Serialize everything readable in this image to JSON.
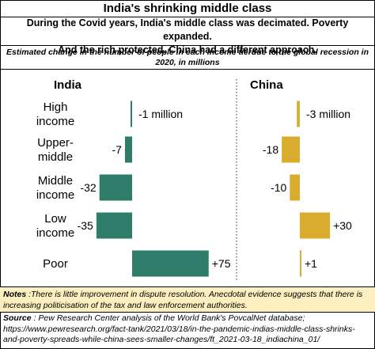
{
  "title": "India's shrinking middle class",
  "subtitle_line1": "During the Covid years, India's middle class was decimated.  Poverty expanded.",
  "subtitle_line2": "And the rich protected.  China had a different approach.",
  "description": "Estimated change in the number of people in each income tierdue to the global recession  in 2020, in millions",
  "notes_label": "Notes",
  "notes_text": " :There is little improvement in dispute resolution. Anecdotal evidence suggests that there is increasing politicisation of the tax and law enforcement authorities.",
  "source_label": "Source",
  "source_text": " : Pew Research Center analysis of the World Bank's PovcalNet database;",
  "source_url_line1": "https://www.pewresearch.org/fact-tank/2021/03/18/in-the-pandemic-indias-middle-class-shrinks-",
  "source_url_line2": "and-poverty-spreads-while-china-sees-smaller-changes/ft_2021-03-18_indiachina_01/",
  "chart_data": {
    "type": "bar",
    "orientation": "horizontal",
    "categories": [
      "High\nincome",
      "Upper-\nmiddle",
      "Middle\nincome",
      "Low\nincome",
      "Poor"
    ],
    "series": [
      {
        "name": "India",
        "color": "#2e7d6a",
        "values": [
          -1,
          -7,
          -32,
          -35,
          75
        ],
        "value_labels": [
          "-1 million",
          "-7",
          "-32",
          "-35",
          "+75"
        ]
      },
      {
        "name": "China",
        "color": "#d9ac2e",
        "values": [
          -3,
          -18,
          -10,
          30,
          1
        ],
        "value_labels": [
          "-3 million",
          "-18",
          "-10",
          "+30",
          "+1"
        ]
      }
    ],
    "divider": "dotted vertical line between panels"
  }
}
